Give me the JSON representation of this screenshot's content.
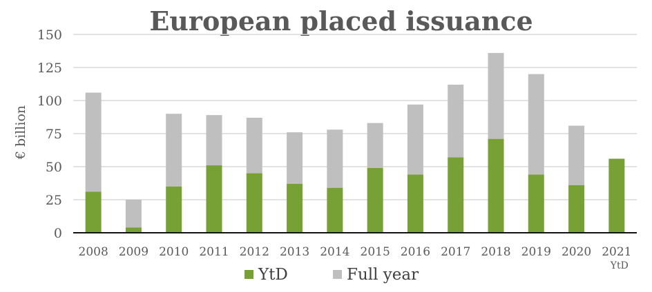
{
  "chart_data": {
    "type": "bar",
    "stacked": true,
    "title": "European placed issuance",
    "xlabel": "",
    "ylabel": "€ billion",
    "ylim": [
      0,
      150
    ],
    "yticks": [
      0,
      25,
      50,
      75,
      100,
      125,
      150
    ],
    "grid": true,
    "legend_position": "bottom",
    "categories": [
      {
        "label": "2008",
        "sub": ""
      },
      {
        "label": "2009",
        "sub": ""
      },
      {
        "label": "2010",
        "sub": ""
      },
      {
        "label": "2011",
        "sub": ""
      },
      {
        "label": "2012",
        "sub": ""
      },
      {
        "label": "2013",
        "sub": ""
      },
      {
        "label": "2014",
        "sub": ""
      },
      {
        "label": "2015",
        "sub": ""
      },
      {
        "label": "2016",
        "sub": ""
      },
      {
        "label": "2017",
        "sub": ""
      },
      {
        "label": "2018",
        "sub": ""
      },
      {
        "label": "2019",
        "sub": ""
      },
      {
        "label": "2020",
        "sub": ""
      },
      {
        "label": "2021",
        "sub": "YtD"
      }
    ],
    "series": [
      {
        "name": "YtD",
        "color": "#77a135",
        "values": [
          31,
          4,
          35,
          51,
          45,
          37,
          34,
          49,
          44,
          57,
          71,
          44,
          36,
          56
        ]
      },
      {
        "name": "Full year",
        "color": "#bfbfbf",
        "totals": [
          106,
          25,
          90,
          89,
          87,
          76,
          78,
          83,
          97,
          112,
          136,
          120,
          81,
          56
        ]
      }
    ]
  }
}
